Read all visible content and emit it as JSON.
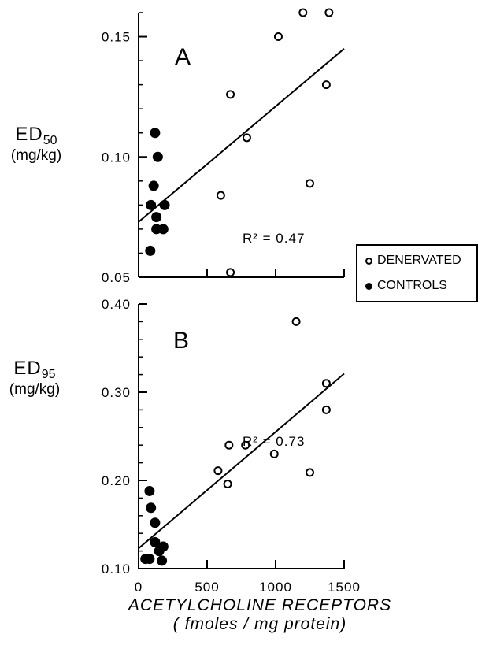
{
  "figure": {
    "x_axis_label_line1": "ACETYLCHOLINE RECEPTORS",
    "x_axis_label_line2": "( fmoles / mg protein)",
    "legend": {
      "denervated": "DENERVATED",
      "controls": "CONTROLS"
    }
  },
  "chart_data": [
    {
      "type": "scatter",
      "panel_label": "A",
      "ylabel_main": "ED",
      "ylabel_sub": "50",
      "ylabel_unit": "(mg/kg)",
      "annotation": "R² = 0.47",
      "xlim": [
        0,
        1500
      ],
      "ylim": [
        0.05,
        0.16
      ],
      "y_ticks": [
        0.05,
        0.1,
        0.15
      ],
      "y_tick_labels": [
        "0.05",
        "0.10",
        "0.15"
      ],
      "x_ticks": [
        0,
        500,
        1000,
        1500
      ],
      "series": [
        {
          "name": "DENERVATED",
          "marker": "open-circle",
          "points": [
            [
              1200,
              0.16
            ],
            [
              1390,
              0.16
            ],
            [
              1020,
              0.15
            ],
            [
              1370,
              0.13
            ],
            [
              670,
              0.126
            ],
            [
              790,
              0.108
            ],
            [
              1250,
              0.089
            ],
            [
              600,
              0.084
            ],
            [
              670,
              0.052
            ]
          ]
        },
        {
          "name": "CONTROLS",
          "marker": "filled-circle",
          "points": [
            [
              120,
              0.11
            ],
            [
              140,
              0.1
            ],
            [
              110,
              0.088
            ],
            [
              90,
              0.08
            ],
            [
              190,
              0.08
            ],
            [
              130,
              0.075
            ],
            [
              130,
              0.07
            ],
            [
              180,
              0.07
            ],
            [
              85,
              0.061
            ]
          ]
        }
      ],
      "regression_line": {
        "x": [
          0,
          1500
        ],
        "y": [
          0.073,
          0.145
        ]
      }
    },
    {
      "type": "scatter",
      "panel_label": "B",
      "ylabel_main": "ED",
      "ylabel_sub": "95",
      "ylabel_unit": "(mg/kg)",
      "annotation": "R² = 0.73",
      "xlim": [
        0,
        1500
      ],
      "ylim": [
        0.1,
        0.4
      ],
      "y_ticks": [
        0.1,
        0.2,
        0.3,
        0.4
      ],
      "y_tick_labels": [
        "0.10",
        "0.20",
        "0.30",
        "0.40"
      ],
      "x_ticks": [
        0,
        500,
        1000,
        1500
      ],
      "x_tick_labels": [
        "0",
        "500",
        "1000",
        "1500"
      ],
      "series": [
        {
          "name": "DENERVATED",
          "marker": "open-circle",
          "points": [
            [
              1150,
              0.38
            ],
            [
              1370,
              0.31
            ],
            [
              1370,
              0.28
            ],
            [
              660,
              0.24
            ],
            [
              780,
              0.24
            ],
            [
              990,
              0.23
            ],
            [
              580,
              0.211
            ],
            [
              1250,
              0.209
            ],
            [
              650,
              0.196
            ]
          ]
        },
        {
          "name": "CONTROLS",
          "marker": "filled-circle",
          "points": [
            [
              80,
              0.188
            ],
            [
              90,
              0.169
            ],
            [
              120,
              0.152
            ],
            [
              120,
              0.13
            ],
            [
              180,
              0.125
            ],
            [
              150,
              0.12
            ],
            [
              50,
              0.111
            ],
            [
              80,
              0.111
            ],
            [
              170,
              0.109
            ]
          ]
        }
      ],
      "regression_line": {
        "x": [
          0,
          1500
        ],
        "y": [
          0.123,
          0.321
        ]
      }
    }
  ]
}
